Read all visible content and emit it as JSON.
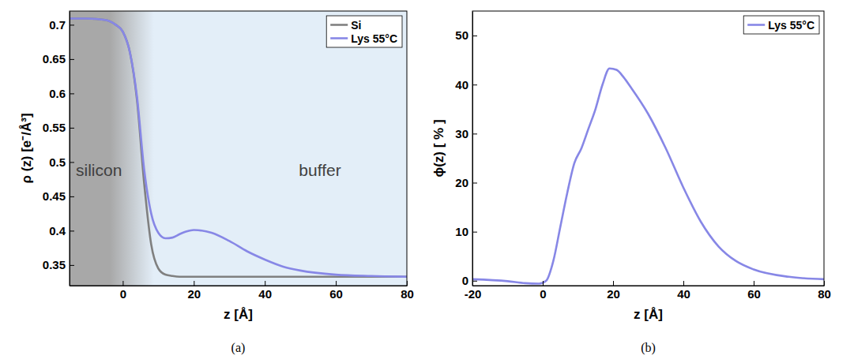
{
  "chart_data": [
    {
      "type": "line",
      "label": "(a)",
      "x_label": "z [Å]",
      "y_label": "ρ (z) [e⁻/Å³]",
      "xlim": [
        -15,
        80
      ],
      "ylim": [
        0.32,
        0.72
      ],
      "xticks": [
        0,
        20,
        40,
        60,
        80
      ],
      "yticks": [
        0.35,
        0.4,
        0.45,
        0.5,
        0.55,
        0.6,
        0.65,
        0.7
      ],
      "grid": false,
      "legend": "north east",
      "annotations": [
        {
          "text": "silicon"
        },
        {
          "text": "buffer"
        }
      ],
      "x": [
        -15,
        -10,
        -5,
        -2,
        0,
        2,
        4,
        6,
        8,
        10,
        12,
        14,
        16,
        18,
        20,
        25,
        30,
        35,
        40,
        45,
        50,
        60,
        70,
        80
      ],
      "series": [
        {
          "name": "Si",
          "color": "#808080",
          "values": [
            0.709,
            0.709,
            0.707,
            0.7,
            0.69,
            0.66,
            0.59,
            0.47,
            0.38,
            0.345,
            0.336,
            0.334,
            0.333,
            0.333,
            0.333,
            0.333,
            0.333,
            0.333,
            0.333,
            0.333,
            0.333,
            0.333,
            0.333,
            0.333
          ]
        },
        {
          "name": "Lys 55°C",
          "color": "#8787e6",
          "values": [
            0.709,
            0.709,
            0.707,
            0.7,
            0.69,
            0.66,
            0.595,
            0.49,
            0.425,
            0.397,
            0.389,
            0.39,
            0.395,
            0.399,
            0.401,
            0.397,
            0.385,
            0.37,
            0.358,
            0.348,
            0.342,
            0.336,
            0.334,
            0.333
          ]
        }
      ]
    },
    {
      "type": "line",
      "label": "(b)",
      "x_label": "z [Å]",
      "y_label": "ϕ(z) [ % ]",
      "xlim": [
        -20,
        80
      ],
      "ylim": [
        -1,
        55
      ],
      "xticks": [
        -20,
        0,
        20,
        40,
        60,
        80
      ],
      "yticks": [
        0,
        10,
        20,
        30,
        40,
        50
      ],
      "grid": false,
      "legend": "north east",
      "x": [
        -20,
        -10,
        -5,
        -1,
        1,
        3,
        5,
        7,
        9,
        11,
        13,
        15,
        17,
        19,
        21,
        23,
        25,
        30,
        35,
        40,
        45,
        50,
        55,
        60,
        70,
        80
      ],
      "series": [
        {
          "name": "Lys 55°C",
          "color": "#8787e6",
          "values": [
            0.3,
            -0.1,
            -0.5,
            -0.6,
            0,
            4,
            11,
            18,
            24,
            27,
            31,
            35,
            40,
            43.3,
            43,
            41.5,
            39.5,
            34,
            27,
            19,
            12,
            7,
            4,
            2.3,
            0.8,
            0.3
          ]
        }
      ]
    }
  ]
}
